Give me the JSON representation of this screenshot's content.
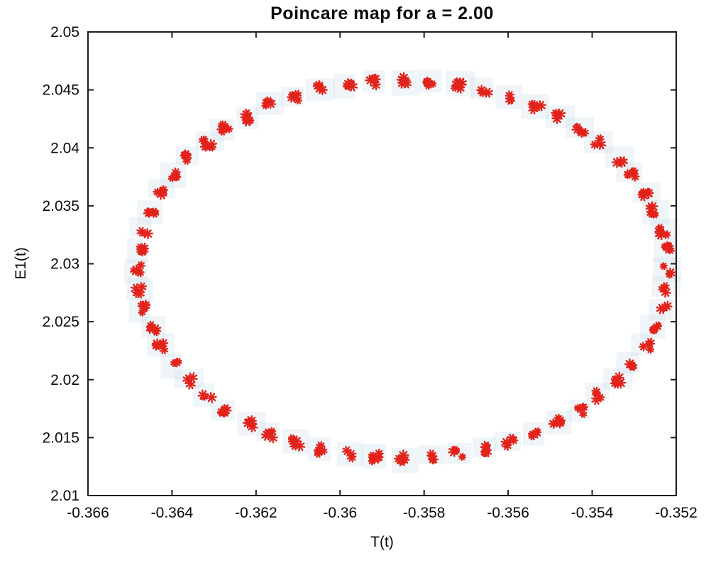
{
  "chart_data": {
    "type": "scatter",
    "title": "Poincare map for a = 2.00",
    "xlabel": "T(t)",
    "ylabel": "E1(t)",
    "xlim": [
      -0.366,
      -0.352
    ],
    "ylim": [
      2.01,
      2.05
    ],
    "xticks": [
      -0.366,
      -0.364,
      -0.362,
      -0.36,
      -0.358,
      -0.356,
      -0.354,
      -0.352
    ],
    "yticks": [
      2.01,
      2.015,
      2.02,
      2.025,
      2.03,
      2.035,
      2.04,
      2.045,
      2.05
    ],
    "grid": false,
    "legend": null,
    "marker": "asterisk",
    "marker_color": "#e2231b",
    "axis_color": "#1c1c1c",
    "halo_color": "#cfe0ea",
    "series": [
      {
        "name": "poincare-section-points",
        "points": [
          [
            -0.3522,
            2.02945
          ],
          [
            -0.35224,
            2.03125
          ],
          [
            -0.35232,
            2.03285
          ],
          [
            -0.35253,
            2.0346
          ],
          [
            -0.35272,
            2.0361
          ],
          [
            -0.35307,
            2.0377
          ],
          [
            -0.35338,
            2.03905
          ],
          [
            -0.35384,
            2.04045
          ],
          [
            -0.35426,
            2.04155
          ],
          [
            -0.35482,
            2.04272
          ],
          [
            -0.35533,
            2.0436
          ],
          [
            -0.35596,
            2.04445
          ],
          [
            -0.35653,
            2.04495
          ],
          [
            -0.3572,
            2.04548
          ],
          [
            -0.35782,
            2.0457
          ],
          [
            -0.3585,
            2.04582
          ],
          [
            -0.35918,
            2.04575
          ],
          [
            -0.3598,
            2.0454
          ],
          [
            -0.36047,
            2.04505
          ],
          [
            -0.36104,
            2.04438
          ],
          [
            -0.36167,
            2.04365
          ],
          [
            -0.36218,
            2.04265
          ],
          [
            -0.36274,
            2.04165
          ],
          [
            -0.36316,
            2.04038
          ],
          [
            -0.36362,
            2.03912
          ],
          [
            -0.36393,
            2.0376
          ],
          [
            -0.36428,
            2.03618
          ],
          [
            -0.36447,
            2.0345
          ],
          [
            -0.36468,
            2.03292
          ],
          [
            -0.36475,
            2.03118
          ],
          [
            -0.36482,
            2.02952
          ],
          [
            -0.36475,
            2.02776
          ],
          [
            -0.36468,
            2.02615
          ],
          [
            -0.36447,
            2.02442
          ],
          [
            -0.36428,
            2.0229
          ],
          [
            -0.36393,
            2.02132
          ],
          [
            -0.36362,
            2.01995
          ],
          [
            -0.36316,
            2.01856
          ],
          [
            -0.36274,
            2.01742
          ],
          [
            -0.36218,
            2.01628
          ],
          [
            -0.36167,
            2.01535
          ],
          [
            -0.36104,
            2.01462
          ],
          [
            -0.36047,
            2.01398
          ],
          [
            -0.3598,
            2.01354
          ],
          [
            -0.35918,
            2.0133
          ],
          [
            -0.3585,
            2.01318
          ],
          [
            -0.35782,
            2.0133
          ],
          [
            -0.3572,
            2.01358
          ],
          [
            -0.35653,
            2.01402
          ],
          [
            -0.35596,
            2.01458
          ],
          [
            -0.35533,
            2.0154
          ],
          [
            -0.35482,
            2.01634
          ],
          [
            -0.35426,
            2.01736
          ],
          [
            -0.35384,
            2.01862
          ],
          [
            -0.35338,
            2.0199
          ],
          [
            -0.35307,
            2.02138
          ],
          [
            -0.35272,
            2.02284
          ],
          [
            -0.35253,
            2.02448
          ],
          [
            -0.35232,
            2.02608
          ],
          [
            -0.35224,
            2.02782
          ]
        ]
      }
    ]
  }
}
